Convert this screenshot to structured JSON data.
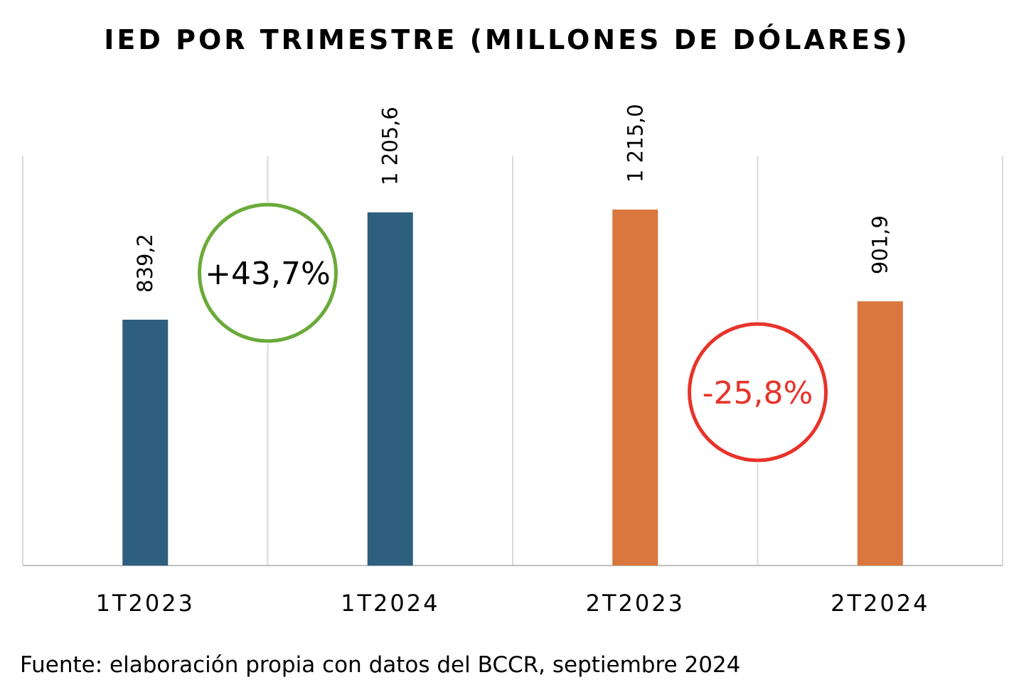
{
  "chart_data": {
    "type": "bar",
    "title": "IED POR TRIMESTRE (MILLONES DE DÓLARES)",
    "categories": [
      "1T2023",
      "1T2024",
      "2T2023",
      "2T2024"
    ],
    "values": [
      839.2,
      1205.6,
      1215.0,
      901.9
    ],
    "value_labels": [
      "839,2",
      "1 205,6",
      "1 215,0",
      "901,9"
    ],
    "bar_colors": [
      "#2e5f7f",
      "#2e5f7f",
      "#d9773f",
      "#d9773f"
    ],
    "ylim": [
      0,
      1400
    ],
    "grid": "vertical separators",
    "legend": "none",
    "annotations": [
      {
        "text": "+43,7%",
        "between": [
          0,
          1
        ],
        "circle_color": "#6aaa3a",
        "text_color": "#000000"
      },
      {
        "text": "-25,8%",
        "between": [
          2,
          3
        ],
        "circle_color": "#e8332a",
        "text_color": "#e8332a"
      }
    ]
  },
  "source": "Fuente: elaboración propia con datos del BCCR, septiembre 2024"
}
